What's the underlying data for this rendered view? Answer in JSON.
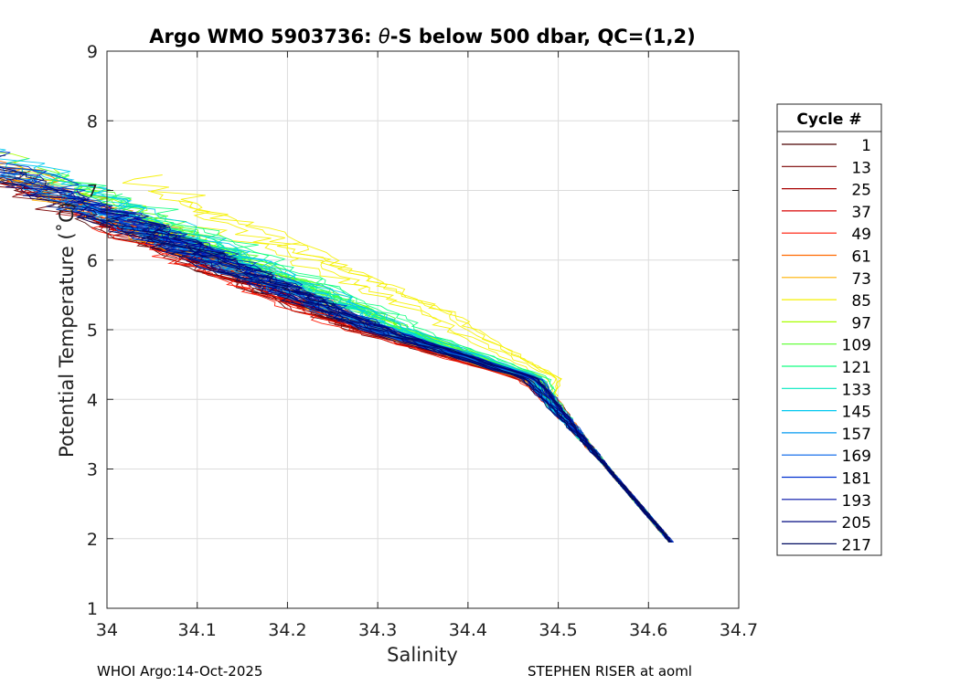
{
  "chart_data": {
    "type": "line",
    "title_prefix": "Argo WMO 5903736: ",
    "title_theta": "θ",
    "title_suffix": "-S below 500 dbar,  QC=(1,2)",
    "xlabel": "Salinity",
    "ylabel": "Potential Temperature (˚C)",
    "xlim": [
      34.0,
      34.7
    ],
    "ylim": [
      1,
      9
    ],
    "xticks": [
      "34",
      "34.1",
      "34.2",
      "34.3",
      "34.4",
      "34.5",
      "34.6",
      "34.7"
    ],
    "yticks": [
      "1",
      "2",
      "3",
      "4",
      "5",
      "6",
      "7",
      "8",
      "9"
    ],
    "grid": true,
    "legend_title": "Cycle #",
    "legend_placement": "right-outside",
    "series": [
      {
        "name": "1",
        "color": "#4a0000"
      },
      {
        "name": "13",
        "color": "#7a0000"
      },
      {
        "name": "25",
        "color": "#a80000"
      },
      {
        "name": "37",
        "color": "#d80000"
      },
      {
        "name": "49",
        "color": "#ff1500"
      },
      {
        "name": "61",
        "color": "#ff6a00"
      },
      {
        "name": "73",
        "color": "#ffb000"
      },
      {
        "name": "85",
        "color": "#f6f000"
      },
      {
        "name": "97",
        "color": "#a8ff00"
      },
      {
        "name": "109",
        "color": "#55ff2a"
      },
      {
        "name": "121",
        "color": "#10ff80"
      },
      {
        "name": "133",
        "color": "#00e8c0"
      },
      {
        "name": "145",
        "color": "#00c8f0"
      },
      {
        "name": "157",
        "color": "#0098f0"
      },
      {
        "name": "169",
        "color": "#0060e8"
      },
      {
        "name": "181",
        "color": "#0030d0"
      },
      {
        "name": "193",
        "color": "#0010a8"
      },
      {
        "name": "205",
        "color": "#000a80"
      },
      {
        "name": "217",
        "color": "#000a60"
      }
    ],
    "profile_shape": {
      "deep_end": [
        34.625,
        1.95
      ],
      "knee": [
        34.47,
        4.3
      ],
      "shelf": [
        34.3,
        5.0
      ]
    }
  },
  "footer": {
    "left": "WHOI Argo:14-Oct-2025",
    "right": "STEPHEN RISER at aoml"
  }
}
